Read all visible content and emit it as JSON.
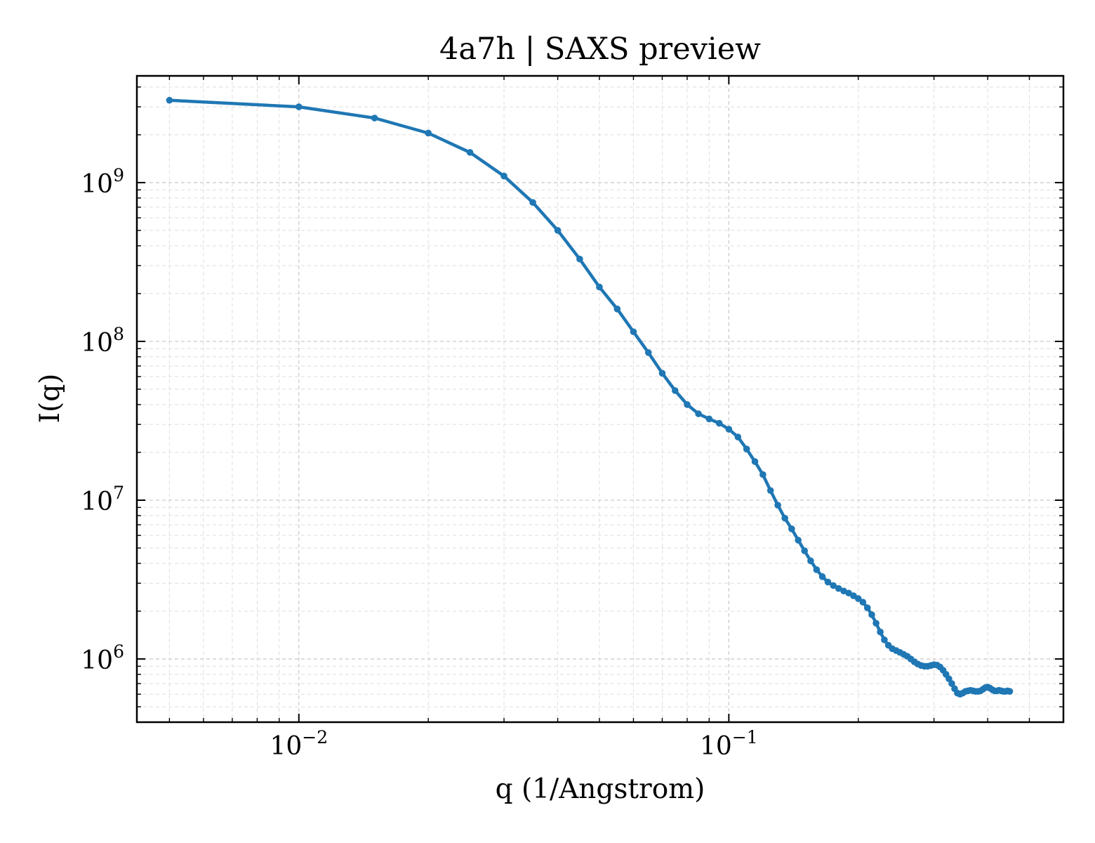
{
  "chart_data": {
    "type": "line",
    "title": "4a7h | SAXS preview",
    "xlabel": "q (1/Angstrom)",
    "ylabel": "I(q)",
    "xscale": "log",
    "yscale": "log",
    "xlim": [
      0.0042,
      0.6
    ],
    "ylim": [
      400000,
      4700000000
    ],
    "grid": true,
    "legend": "none",
    "x_ticks": [
      {
        "base": "10",
        "exp": "−2",
        "value": 0.01
      },
      {
        "base": "10",
        "exp": "−1",
        "value": 0.1
      }
    ],
    "y_ticks": [
      {
        "base": "10",
        "exp": "6",
        "value": 1000000
      },
      {
        "base": "10",
        "exp": "7",
        "value": 10000000
      },
      {
        "base": "10",
        "exp": "8",
        "value": 100000000
      },
      {
        "base": "10",
        "exp": "9",
        "value": 1000000000
      }
    ],
    "series": [
      {
        "color": "#1f77b4",
        "points": [
          [
            0.005,
            3300000000.0
          ],
          [
            0.01,
            3000000000.0
          ],
          [
            0.015,
            2550000000.0
          ],
          [
            0.02,
            2050000000.0
          ],
          [
            0.025,
            1550000000.0
          ],
          [
            0.03,
            1100000000.0
          ],
          [
            0.035,
            750000000.0
          ],
          [
            0.04,
            500000000.0
          ],
          [
            0.045,
            330000000.0
          ],
          [
            0.05,
            220000000.0
          ],
          [
            0.055,
            160000000.0
          ],
          [
            0.06,
            115000000.0
          ],
          [
            0.065,
            85000000.0
          ],
          [
            0.07,
            63000000.0
          ],
          [
            0.075,
            49000000.0
          ],
          [
            0.08,
            40000000.0
          ],
          [
            0.085,
            35000000.0
          ],
          [
            0.09,
            32500000.0
          ],
          [
            0.095,
            30500000.0
          ],
          [
            0.1,
            28000000.0
          ],
          [
            0.105,
            25000000.0
          ],
          [
            0.11,
            21000000.0
          ],
          [
            0.115,
            17500000.0
          ],
          [
            0.12,
            14500000.0
          ],
          [
            0.125,
            11500000.0
          ],
          [
            0.13,
            9300000.0
          ],
          [
            0.135,
            7700000.0
          ],
          [
            0.14,
            6600000.0
          ],
          [
            0.145,
            5600000.0
          ],
          [
            0.15,
            4800000.0
          ],
          [
            0.155,
            4150000.0
          ],
          [
            0.16,
            3650000.0
          ],
          [
            0.165,
            3300000.0
          ],
          [
            0.17,
            3050000.0
          ],
          [
            0.175,
            2900000.0
          ],
          [
            0.18,
            2780000.0
          ],
          [
            0.185,
            2680000.0
          ],
          [
            0.19,
            2600000.0
          ],
          [
            0.195,
            2500000.0
          ],
          [
            0.2,
            2400000.0
          ],
          [
            0.205,
            2280000.0
          ],
          [
            0.21,
            2100000.0
          ],
          [
            0.215,
            1900000.0
          ],
          [
            0.22,
            1680000.0
          ],
          [
            0.225,
            1480000.0
          ],
          [
            0.23,
            1320000.0
          ],
          [
            0.235,
            1220000.0
          ],
          [
            0.24,
            1160000.0
          ],
          [
            0.245,
            1130000.0
          ],
          [
            0.25,
            1100000.0
          ],
          [
            0.255,
            1070000.0
          ],
          [
            0.26,
            1040000.0
          ],
          [
            0.265,
            1000000.0
          ],
          [
            0.27,
            960000.0
          ],
          [
            0.275,
            930000.0
          ],
          [
            0.28,
            910000.0
          ],
          [
            0.285,
            900000.0
          ],
          [
            0.29,
            900000.0
          ],
          [
            0.295,
            910000.0
          ],
          [
            0.3,
            920000.0
          ],
          [
            0.305,
            915000.0
          ],
          [
            0.31,
            890000.0
          ],
          [
            0.315,
            850000.0
          ],
          [
            0.32,
            800000.0
          ],
          [
            0.325,
            750000.0
          ],
          [
            0.33,
            700000.0
          ],
          [
            0.335,
            650000.0
          ],
          [
            0.34,
            610000.0
          ],
          [
            0.345,
            600000.0
          ],
          [
            0.35,
            610000.0
          ],
          [
            0.355,
            625000.0
          ],
          [
            0.36,
            630000.0
          ],
          [
            0.365,
            635000.0
          ],
          [
            0.37,
            630000.0
          ],
          [
            0.375,
            625000.0
          ],
          [
            0.38,
            625000.0
          ],
          [
            0.385,
            630000.0
          ],
          [
            0.39,
            645000.0
          ],
          [
            0.395,
            660000.0
          ],
          [
            0.4,
            665000.0
          ],
          [
            0.405,
            655000.0
          ],
          [
            0.41,
            640000.0
          ],
          [
            0.415,
            630000.0
          ],
          [
            0.42,
            630000.0
          ],
          [
            0.425,
            635000.0
          ],
          [
            0.43,
            630000.0
          ],
          [
            0.435,
            625000.0
          ],
          [
            0.44,
            625000.0
          ],
          [
            0.445,
            630000.0
          ],
          [
            0.45,
            625000.0
          ]
        ]
      }
    ]
  }
}
